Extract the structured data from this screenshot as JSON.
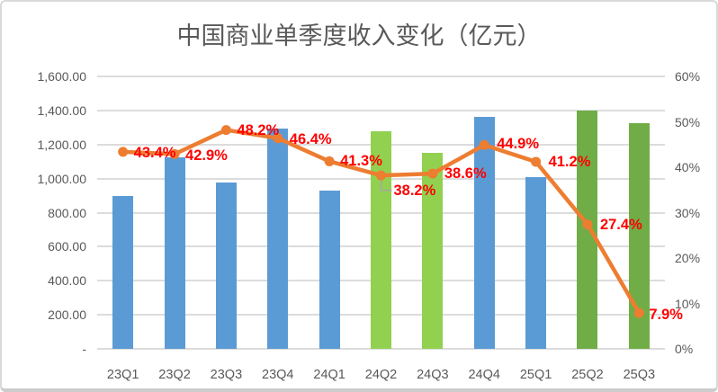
{
  "chart_data": {
    "type": "combo (bar + line)",
    "title": "中国商业单季度收入变化（亿元）",
    "categories": [
      "23Q1",
      "23Q2",
      "23Q3",
      "23Q4",
      "24Q1",
      "24Q2",
      "24Q3",
      "24Q4",
      "25Q1",
      "25Q2",
      "25Q3"
    ],
    "bars": {
      "axis": "left",
      "values_estimated_from_pixels": true,
      "values": [
        900,
        1125,
        975,
        1295,
        930,
        1280,
        1150,
        1360,
        1010,
        1400,
        1325
      ],
      "colors": [
        "#5B9BD5",
        "#5B9BD5",
        "#5B9BD5",
        "#5B9BD5",
        "#5B9BD5",
        "#92D050",
        "#92D050",
        "#5B9BD5",
        "#5B9BD5",
        "#70AD47",
        "#70AD47"
      ]
    },
    "line": {
      "axis": "right",
      "values": [
        43.4,
        42.9,
        48.2,
        46.4,
        41.3,
        38.2,
        38.6,
        44.9,
        41.2,
        27.4,
        7.9
      ],
      "labels": [
        "43.4%",
        "42.9%",
        "48.2%",
        "46.4%",
        "41.3%",
        "38.2%",
        "38.6%",
        "44.9%",
        "41.2%",
        "27.4%",
        "7.9%"
      ],
      "color": "#ED7D31",
      "label_color": "#FF0000",
      "callout_index": 5,
      "callout_color": "#A6A6A6"
    },
    "left_axis": {
      "min": 0,
      "max": 1600,
      "ticks_top_to_bottom": [
        "1,600.00",
        "1,400.00",
        "1,200.00",
        "1,000.00",
        "800.00",
        "600.00",
        "400.00",
        "200.00",
        "-"
      ]
    },
    "right_axis": {
      "min": 0,
      "max": 60,
      "ticks_top_to_bottom": [
        "60%",
        "50%",
        "40%",
        "30%",
        "20%",
        "10%",
        "0%"
      ]
    },
    "grid": true,
    "legend": "none",
    "colors": {
      "title_text": "#595959",
      "axis_text": "#595959",
      "gridline": "#DCDCDC"
    }
  }
}
